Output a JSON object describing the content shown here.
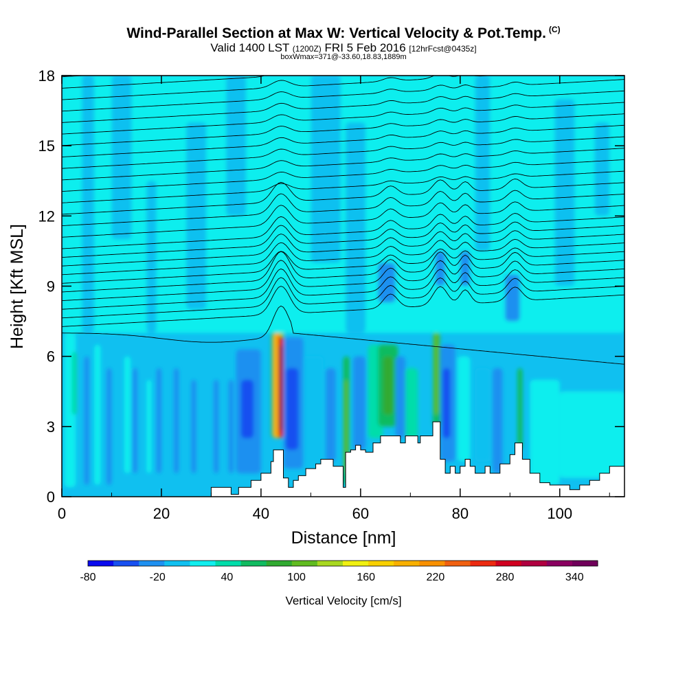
{
  "header": {
    "title": "Wind-Parallel Section at Max W: Vertical Velocity & Pot.Temp.",
    "title_mark": "(C)",
    "valid_main": "Valid 1400 LST",
    "valid_zulu": "(1200Z)",
    "valid_date": "FRI 5 Feb 2016",
    "forecast": "[12hrFcst@0435z]",
    "box_info": "boxWmax=371@-33.60,18.83,1889m"
  },
  "chart_data": {
    "type": "heatmap",
    "xlabel": "Distance [nm]",
    "ylabel": "Height [Kft MSL]",
    "xlim": [
      0,
      113
    ],
    "ylim": [
      0,
      18
    ],
    "x_ticks": [
      0,
      20,
      40,
      60,
      80,
      100
    ],
    "y_ticks": [
      0,
      3,
      6,
      9,
      12,
      15,
      18
    ],
    "colorbar": {
      "label": "Vertical Velocity [cm/s]",
      "tick_labels": [
        "-80",
        "-20",
        "40",
        "100",
        "160",
        "220",
        "280",
        "340"
      ],
      "tick_values": [
        -80,
        -20,
        40,
        100,
        160,
        220,
        280,
        340
      ],
      "min": -80,
      "max": 360,
      "step": 20,
      "colors": [
        "#0a0aee",
        "#1850f0",
        "#1e90f0",
        "#10c0f0",
        "#10eeee",
        "#00ddaa",
        "#10bb60",
        "#30aa30",
        "#60bb20",
        "#a8d820",
        "#f0f010",
        "#f8d000",
        "#f8b000",
        "#f89000",
        "#f06010",
        "#ec2a10",
        "#d00020",
        "#b00040",
        "#8a0060",
        "#70005a"
      ]
    },
    "background_value": -10,
    "w_cells": [
      {
        "x": 0.5,
        "x2": 2.8,
        "y": 0.4,
        "y2": 7.0,
        "w": 5
      },
      {
        "x": 2.0,
        "x2": 3.0,
        "y": 3.5,
        "y2": 6.2,
        "w": 35
      },
      {
        "x": 4.5,
        "x2": 5.5,
        "y": 0.5,
        "y2": 6.0,
        "w": -30
      },
      {
        "x": 6.5,
        "x2": 7.8,
        "y": 0.5,
        "y2": 6.5,
        "w": 15
      },
      {
        "x": 9.0,
        "x2": 10.0,
        "y": 0.5,
        "y2": 5.5,
        "w": -30
      },
      {
        "x": 12.5,
        "x2": 13.8,
        "y": 1.0,
        "y2": 6.0,
        "w": 10
      },
      {
        "x": 14.2,
        "x2": 15.2,
        "y": 1.0,
        "y2": 5.5,
        "w": -30
      },
      {
        "x": 17.0,
        "x2": 18.0,
        "y": 1.0,
        "y2": 5.0,
        "w": 0
      },
      {
        "x": 19.0,
        "x2": 20.0,
        "y": 1.0,
        "y2": 5.5,
        "w": -30
      },
      {
        "x": 22.5,
        "x2": 23.5,
        "y": 1.0,
        "y2": 5.5,
        "w": -30
      },
      {
        "x": 26.0,
        "x2": 27.0,
        "y": 1.0,
        "y2": 5.0,
        "w": -30
      },
      {
        "x": 30.5,
        "x2": 31.5,
        "y": 1.0,
        "y2": 5.0,
        "w": -30
      },
      {
        "x": 33.5,
        "x2": 34.5,
        "y": 1.0,
        "y2": 5.0,
        "w": -30
      },
      {
        "x": 35.0,
        "x2": 40.0,
        "y": 1.0,
        "y2": 6.3,
        "w": -30
      },
      {
        "x": 36.0,
        "x2": 38.5,
        "y": 2.5,
        "y2": 5.0,
        "w": -50
      },
      {
        "x": 42.0,
        "x2": 44.5,
        "y": 2.5,
        "y2": 7.5,
        "w": 40
      },
      {
        "x": 42.5,
        "x2": 44.0,
        "y": 2.5,
        "y2": 7.0,
        "w": 160
      },
      {
        "x": 43.5,
        "x2": 44.5,
        "y": 2.5,
        "y2": 7.0,
        "w": 240
      },
      {
        "x": 43.7,
        "x2": 44.2,
        "y": 2.8,
        "y2": 6.5,
        "w": 300
      },
      {
        "x": 43.7,
        "x2": 44.5,
        "y": 6.8,
        "y2": 8.5,
        "w": 100
      },
      {
        "x": 44.5,
        "x2": 48.5,
        "y": 1.2,
        "y2": 6.8,
        "w": -30
      },
      {
        "x": 45.0,
        "x2": 47.5,
        "y": 2.0,
        "y2": 5.5,
        "w": -50
      },
      {
        "x": 48.5,
        "x2": 52.5,
        "y": 1.0,
        "y2": 6.0,
        "w": -10
      },
      {
        "x": 53.0,
        "x2": 55.0,
        "y": 1.5,
        "y2": 5.5,
        "w": -30
      },
      {
        "x": 56.5,
        "x2": 57.8,
        "y": 0.5,
        "y2": 6.0,
        "w": 40
      },
      {
        "x": 56.8,
        "x2": 57.4,
        "y": 1.0,
        "y2": 5.0,
        "w": 80
      },
      {
        "x": 58.5,
        "x2": 61.0,
        "y": 2.0,
        "y2": 6.0,
        "w": -30
      },
      {
        "x": 61.5,
        "x2": 64.5,
        "y": 2.5,
        "y2": 6.5,
        "w": 30
      },
      {
        "x": 63.5,
        "x2": 67.5,
        "y": 3.0,
        "y2": 6.5,
        "w": 50
      },
      {
        "x": 64.5,
        "x2": 66.5,
        "y": 3.5,
        "y2": 6.0,
        "w": 70
      },
      {
        "x": 67.0,
        "x2": 69.0,
        "y": 2.5,
        "y2": 6.0,
        "w": -30
      },
      {
        "x": 69.0,
        "x2": 71.5,
        "y": 2.5,
        "y2": 5.5,
        "w": 30
      },
      {
        "x": 74.5,
        "x2": 76.0,
        "y": 3.0,
        "y2": 8.0,
        "w": 40
      },
      {
        "x": 74.8,
        "x2": 75.6,
        "y": 3.5,
        "y2": 7.5,
        "w": 80
      },
      {
        "x": 76.0,
        "x2": 79.0,
        "y": 1.5,
        "y2": 6.5,
        "w": -30
      },
      {
        "x": 76.5,
        "x2": 78.0,
        "y": 2.5,
        "y2": 5.5,
        "w": -60
      },
      {
        "x": 79.5,
        "x2": 82.0,
        "y": 1.5,
        "y2": 6.0,
        "w": 10
      },
      {
        "x": 83.0,
        "x2": 86.0,
        "y": 1.5,
        "y2": 5.5,
        "w": -10
      },
      {
        "x": 86.5,
        "x2": 88.5,
        "y": 1.0,
        "y2": 5.5,
        "w": -30
      },
      {
        "x": 91.5,
        "x2": 92.5,
        "y": 2.0,
        "y2": 5.5,
        "w": 40
      },
      {
        "x": 94.0,
        "x2": 100.0,
        "y": 0.5,
        "y2": 5.0,
        "w": 5
      },
      {
        "x": 100.0,
        "x2": 113.0,
        "y": 0.8,
        "y2": 4.5,
        "w": 5
      },
      {
        "x": 0.0,
        "x2": 113.0,
        "y": 7.0,
        "y2": 18.0,
        "w": 5
      },
      {
        "x": 63.5,
        "x2": 67.0,
        "y": 8.3,
        "y2": 10.0,
        "w": -40
      },
      {
        "x": 75.0,
        "x2": 77.0,
        "y": 9.0,
        "y2": 10.5,
        "w": -30
      },
      {
        "x": 80.0,
        "x2": 82.0,
        "y": 9.0,
        "y2": 10.5,
        "w": -30
      },
      {
        "x": 89.0,
        "x2": 92.0,
        "y": 7.5,
        "y2": 9.5,
        "w": -30
      },
      {
        "x": 4.0,
        "x2": 6.5,
        "y": 7.0,
        "y2": 18.0,
        "w": -10
      },
      {
        "x": 10.0,
        "x2": 14.0,
        "y": 11.0,
        "y2": 18.0,
        "w": -10
      },
      {
        "x": 17.0,
        "x2": 19.0,
        "y": 7.0,
        "y2": 13.5,
        "w": -10
      },
      {
        "x": 25.0,
        "x2": 29.0,
        "y": 8.0,
        "y2": 16.0,
        "w": -10
      },
      {
        "x": 33.0,
        "x2": 37.0,
        "y": 12.0,
        "y2": 18.0,
        "w": -10
      },
      {
        "x": 50.0,
        "x2": 56.0,
        "y": 10.0,
        "y2": 18.0,
        "w": -10
      },
      {
        "x": 57.0,
        "x2": 61.0,
        "y": 7.0,
        "y2": 16.0,
        "w": -10
      },
      {
        "x": 83.0,
        "x2": 86.0,
        "y": 10.5,
        "y2": 18.0,
        "w": -10
      },
      {
        "x": 99.0,
        "x2": 103.0,
        "y": 9.0,
        "y2": 17.0,
        "w": -10
      },
      {
        "x": 107.0,
        "x2": 110.0,
        "y": 12.0,
        "y2": 16.0,
        "w": -10
      }
    ],
    "terrain": [
      [
        0,
        0
      ],
      [
        5,
        0
      ],
      [
        30,
        0
      ],
      [
        30,
        0.4
      ],
      [
        34,
        0.4
      ],
      [
        34,
        0.1
      ],
      [
        35.5,
        0.1
      ],
      [
        35.5,
        0.4
      ],
      [
        38,
        0.4
      ],
      [
        38,
        0.7
      ],
      [
        40,
        0.7
      ],
      [
        40,
        1.0
      ],
      [
        42,
        1.0
      ],
      [
        42,
        1.5
      ],
      [
        42.5,
        1.5
      ],
      [
        42.5,
        2.0
      ],
      [
        44.5,
        2.0
      ],
      [
        44.5,
        0.8
      ],
      [
        45.5,
        0.8
      ],
      [
        45.5,
        0.4
      ],
      [
        46.5,
        0.4
      ],
      [
        46.5,
        0.7
      ],
      [
        47.5,
        0.7
      ],
      [
        47.5,
        0.9
      ],
      [
        49,
        0.9
      ],
      [
        49,
        1.2
      ],
      [
        51,
        1.2
      ],
      [
        51,
        1.4
      ],
      [
        52,
        1.4
      ],
      [
        52,
        1.6
      ],
      [
        54.5,
        1.6
      ],
      [
        54.5,
        1.3
      ],
      [
        56.5,
        1.3
      ],
      [
        56.5,
        0.4
      ],
      [
        57,
        0.4
      ],
      [
        57,
        1.9
      ],
      [
        58,
        1.9
      ],
      [
        58,
        2.0
      ],
      [
        59,
        2.0
      ],
      [
        59,
        2.2
      ],
      [
        60,
        2.2
      ],
      [
        60,
        2.0
      ],
      [
        61,
        2.0
      ],
      [
        61,
        1.9
      ],
      [
        62.5,
        1.9
      ],
      [
        62.5,
        2.3
      ],
      [
        64,
        2.3
      ],
      [
        64,
        2.6
      ],
      [
        68,
        2.6
      ],
      [
        68,
        2.3
      ],
      [
        69,
        2.3
      ],
      [
        69,
        2.6
      ],
      [
        71.5,
        2.6
      ],
      [
        71.5,
        2.3
      ],
      [
        72,
        2.3
      ],
      [
        72,
        2.6
      ],
      [
        74.5,
        2.6
      ],
      [
        74.5,
        3.2
      ],
      [
        76,
        3.2
      ],
      [
        76,
        1.6
      ],
      [
        77,
        1.6
      ],
      [
        77,
        1.0
      ],
      [
        78,
        1.0
      ],
      [
        78,
        1.3
      ],
      [
        79,
        1.3
      ],
      [
        79,
        1.0
      ],
      [
        80,
        1.0
      ],
      [
        80,
        1.3
      ],
      [
        81,
        1.3
      ],
      [
        81,
        1.6
      ],
      [
        82,
        1.6
      ],
      [
        82,
        1.3
      ],
      [
        83,
        1.3
      ],
      [
        83,
        1.0
      ],
      [
        85,
        1.0
      ],
      [
        85,
        1.3
      ],
      [
        86,
        1.3
      ],
      [
        86,
        1.0
      ],
      [
        88,
        1.0
      ],
      [
        88,
        1.4
      ],
      [
        90,
        1.4
      ],
      [
        90,
        1.8
      ],
      [
        91,
        1.8
      ],
      [
        91,
        2.3
      ],
      [
        92.5,
        2.3
      ],
      [
        92.5,
        1.6
      ],
      [
        94,
        1.6
      ],
      [
        94,
        1.0
      ],
      [
        96,
        1.0
      ],
      [
        96,
        0.6
      ],
      [
        98,
        0.6
      ],
      [
        98,
        0.5
      ],
      [
        102,
        0.5
      ],
      [
        102,
        0.3
      ],
      [
        104,
        0.3
      ],
      [
        104,
        0.5
      ],
      [
        106,
        0.5
      ],
      [
        106,
        0.7
      ],
      [
        108,
        0.7
      ],
      [
        108,
        1.0
      ],
      [
        110,
        1.0
      ],
      [
        110,
        1.3
      ],
      [
        113,
        1.3
      ],
      [
        113,
        0
      ]
    ]
  }
}
